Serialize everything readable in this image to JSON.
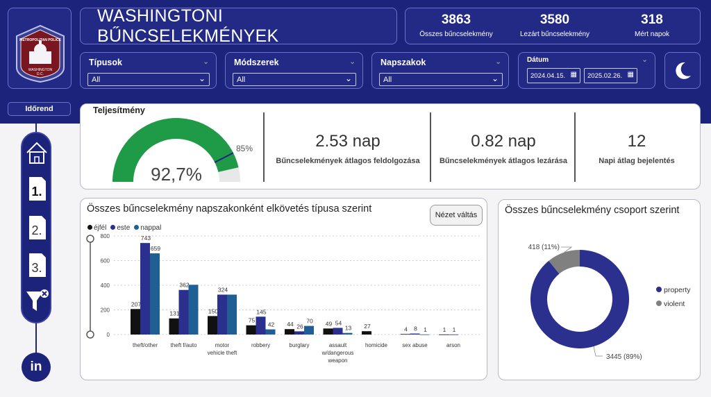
{
  "header": {
    "title": "WASHINGTONI BŰNCSELEKMÉNYEK",
    "logo_text": [
      "METROPOLITAN POLICE",
      "WASHINGTON",
      "D.C."
    ]
  },
  "kpis": [
    {
      "value": "3863",
      "label": "Összes bűncselekmény"
    },
    {
      "value": "3580",
      "label": "Lezárt bűncselekmény"
    },
    {
      "value": "318",
      "label": "Mért napok"
    }
  ],
  "filters": {
    "tipusok": {
      "label": "Típusok",
      "value": "All"
    },
    "modszerek": {
      "label": "Módszerek",
      "value": "All"
    },
    "napszakok": {
      "label": "Napszakok",
      "value": "All"
    },
    "datum": {
      "label": "Dátum",
      "from": "2024.04.15.",
      "to": "2025.02.26."
    }
  },
  "nav": {
    "idorend_label": "Időrend",
    "buttons": [
      "home-icon",
      "page-1-icon",
      "page-2-icon",
      "page-3-icon",
      "clear-filter-icon"
    ],
    "page_numbers": [
      "1.",
      "2.",
      "3."
    ],
    "linkedin_label": "in"
  },
  "performance": {
    "title": "Teljesítmény",
    "gauge_value": 92.7,
    "gauge_display": "92,7%",
    "target_label": "85%",
    "target": 85,
    "gauge_color": "#1f9a47",
    "metrics": [
      {
        "value": "2.53 nap",
        "label": "Bűncselekmények átlagos feldolgozása"
      },
      {
        "value": "0.82 nap",
        "label": "Bűncselekmények átlagos lezárása"
      },
      {
        "value": "12",
        "label": "Napi átlag bejelentés"
      }
    ]
  },
  "bar_chart": {
    "title": "Összes bűncselekmény napszakonként elkövetés típusa szerint",
    "toggle_label": "Nézet váltás"
  },
  "donut_chart": {
    "title": "Összes bűncselekmény csoport szerint",
    "label_violent": "418 (11%)",
    "label_property": "3445 (89%)"
  },
  "chart_data": [
    {
      "type": "bar",
      "title": "Összes bűncselekmény napszakonként elkövetés típusa szerint",
      "categories": [
        "theft/other",
        "theft f/auto",
        "motor vehicle theft",
        "robbery",
        "burglary",
        "assault w/dangerous weapon",
        "homicide",
        "sex abuse",
        "arson"
      ],
      "series": [
        {
          "name": "éjfél",
          "color": "#111111",
          "values": [
            207,
            131,
            150,
            75,
            44,
            49,
            27,
            4,
            1
          ]
        },
        {
          "name": "este",
          "color": "#2b2f8e",
          "values": [
            743,
            362,
            324,
            145,
            26,
            54,
            0,
            8,
            1
          ]
        },
        {
          "name": "nappal",
          "color": "#1f5f93",
          "values": [
            659,
            404,
            324,
            42,
            70,
            13,
            0,
            1,
            0
          ]
        }
      ],
      "data_labels": [
        [
          "207",
          "743",
          "659"
        ],
        [
          "131",
          "362",
          ""
        ],
        [
          "150",
          "324",
          ""
        ],
        [
          "75",
          "145",
          "42"
        ],
        [
          "44",
          "26",
          "70"
        ],
        [
          "49",
          "54",
          "13"
        ],
        [
          "27",
          "",
          ""
        ],
        [
          "4",
          "8",
          "1"
        ],
        [
          "1",
          "1",
          ""
        ]
      ],
      "yticks": [
        0,
        200,
        400,
        600,
        800
      ],
      "ylim": [
        0,
        800
      ],
      "grid": true,
      "legend_position": "top-left"
    },
    {
      "type": "pie",
      "title": "Összes bűncselekmény csoport szerint",
      "labels": [
        "property",
        "violent"
      ],
      "values": [
        3445,
        418
      ],
      "percent": [
        89,
        11
      ],
      "colors": [
        "#2b2f8e",
        "#808080"
      ],
      "legend_position": "right"
    }
  ]
}
